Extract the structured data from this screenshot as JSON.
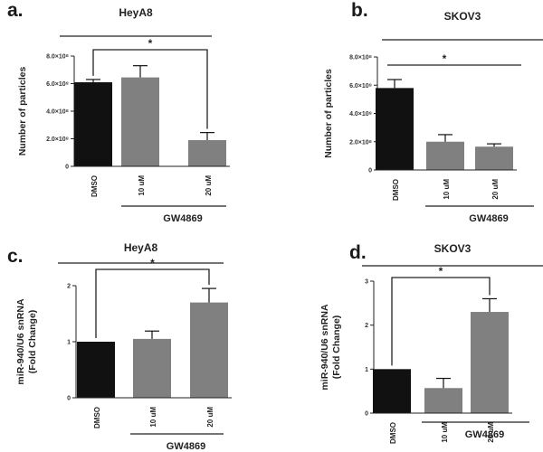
{
  "figure": {
    "chart_data": [
      {
        "panel": "a.",
        "type": "bar",
        "title": "HeyA8",
        "ylabel": "Number of particles",
        "ylim": [
          0,
          800000000.0
        ],
        "yticks": [
          {
            "value": 0,
            "label": "0"
          },
          {
            "value": 200000000.0,
            "label": "2.0×10⁸"
          },
          {
            "value": 400000000.0,
            "label": "4.0×10⁸"
          },
          {
            "value": 600000000.0,
            "label": "6.0×10⁸"
          },
          {
            "value": 800000000.0,
            "label": "8.0×10⁸"
          }
        ],
        "categories": [
          "DMSO",
          "10 uM",
          "20 uM"
        ],
        "values": [
          610000000.0,
          645000000.0,
          190000000.0
        ],
        "errors": [
          20000000.0,
          85000000.0,
          55000000.0
        ],
        "colors": [
          "#111111",
          "#808080",
          "#808080"
        ],
        "group_label": "GW4869",
        "significance": {
          "mark": "*",
          "style": "bracket",
          "from": 0,
          "to": 2
        }
      },
      {
        "panel": "b.",
        "type": "bar",
        "title": "SKOV3",
        "ylabel": "Number of particles",
        "ylim": [
          0,
          800000000.0
        ],
        "yticks": [
          {
            "value": 0,
            "label": "0"
          },
          {
            "value": 200000000.0,
            "label": "2.0×10⁸"
          },
          {
            "value": 400000000.0,
            "label": "4.0×10⁸"
          },
          {
            "value": 600000000.0,
            "label": "6.0×10⁸"
          },
          {
            "value": 800000000.0,
            "label": "8.0×10⁸"
          }
        ],
        "categories": [
          "DMSO",
          "10 uM",
          "20 uM"
        ],
        "values": [
          580000000.0,
          200000000.0,
          165000000.0
        ],
        "errors": [
          60000000.0,
          50000000.0,
          20000000.0
        ],
        "colors": [
          "#111111",
          "#808080",
          "#808080"
        ],
        "group_label": "GW4869",
        "significance": {
          "mark": "*",
          "style": "line",
          "from": 0,
          "to": 2
        }
      },
      {
        "panel": "c.",
        "type": "bar",
        "title": "HeyA8",
        "ylabel": "miR-940/U6 snRNA (Fold Change)",
        "ylabel_lines": [
          "miR-940/U6 snRNA",
          "(Fold Change)"
        ],
        "ylim": [
          0,
          2
        ],
        "yticks": [
          {
            "value": 0,
            "label": "0"
          },
          {
            "value": 1,
            "label": "1"
          },
          {
            "value": 2,
            "label": "2"
          }
        ],
        "categories": [
          "DMSO",
          "10 uM",
          "20 uM"
        ],
        "values": [
          1.0,
          1.05,
          1.7
        ],
        "errors": [
          0.0,
          0.14,
          0.25
        ],
        "colors": [
          "#111111",
          "#808080",
          "#808080"
        ],
        "group_label": "GW4869",
        "significance": {
          "mark": "*",
          "style": "bracket",
          "from": 0,
          "to": 2
        }
      },
      {
        "panel": "d.",
        "type": "bar",
        "title": "SKOV3",
        "ylabel": "miR-940/U6 snRNA (Fold Change)",
        "ylabel_lines": [
          "miR-940/U6 snRNA",
          "(Fold Change)"
        ],
        "ylim": [
          0,
          3
        ],
        "yticks": [
          {
            "value": 0,
            "label": "0"
          },
          {
            "value": 1,
            "label": "1"
          },
          {
            "value": 2,
            "label": "2"
          },
          {
            "value": 3,
            "label": "3"
          }
        ],
        "categories": [
          "DMSO",
          "10 uM",
          "20 uM"
        ],
        "values": [
          1.0,
          0.57,
          2.3
        ],
        "errors": [
          0.0,
          0.22,
          0.3
        ],
        "colors": [
          "#111111",
          "#808080",
          "#808080"
        ],
        "group_label": "GW4869",
        "significance": {
          "mark": "*",
          "style": "bracket",
          "from": 0,
          "to": 2
        }
      }
    ]
  }
}
